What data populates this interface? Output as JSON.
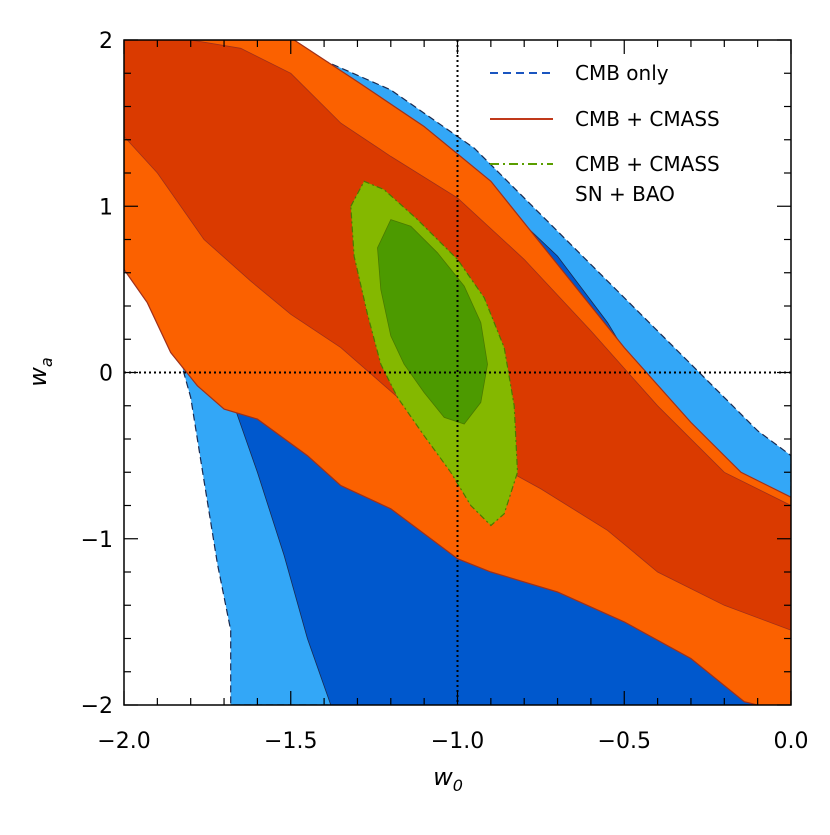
{
  "chart_data": {
    "type": "contour",
    "xlabel": "w",
    "xlabel_subscript": "0",
    "ylabel": "w",
    "ylabel_subscript": "a",
    "xlim": [
      -2.0,
      0.0
    ],
    "ylim": [
      -2.0,
      2.0
    ],
    "x_ticks": [
      -2.0,
      -1.5,
      -1.0,
      -0.5,
      0.0
    ],
    "x_tick_labels": [
      "−2.0",
      "−1.5",
      "−1.0",
      "−0.5",
      "0.0"
    ],
    "y_ticks": [
      -2,
      -1,
      0,
      1,
      2
    ],
    "y_tick_labels": [
      "−2",
      "−1",
      "0",
      "1",
      "2"
    ],
    "reference_lines": {
      "x": -1.0,
      "y": 0.0,
      "style": "dotted"
    },
    "legend_position": "top-right",
    "legend": [
      {
        "label": "CMB only",
        "style": "dashed",
        "color": "#1a55c0"
      },
      {
        "label": "CMB + CMASS",
        "style": "solid",
        "color": "#c0391a"
      },
      {
        "label": "CMB + CMASS",
        "label2": "SN + BAO",
        "style": "dash-dot",
        "color": "#5a9e00"
      }
    ],
    "series": [
      {
        "name": "CMB only",
        "color_outer": "#33a7f7",
        "color_inner": "#0058cd",
        "outer_95": [
          [
            -2.0,
            0.85
          ],
          [
            -1.92,
            0.65
          ],
          [
            -1.86,
            0.28
          ],
          [
            -1.8,
            -0.15
          ],
          [
            -1.76,
            -0.65
          ],
          [
            -1.72,
            -1.15
          ],
          [
            -1.68,
            -1.55
          ],
          [
            -1.68,
            -2.0
          ],
          [
            0.0,
            -2.0
          ],
          [
            0.0,
            -0.5
          ],
          [
            -0.1,
            -0.35
          ],
          [
            -0.25,
            -0.05
          ],
          [
            -0.45,
            0.35
          ],
          [
            -0.7,
            0.85
          ],
          [
            -0.95,
            1.35
          ],
          [
            -1.2,
            1.7
          ],
          [
            -1.45,
            1.92
          ],
          [
            -1.53,
            2.0
          ],
          [
            -2.0,
            2.0
          ]
        ],
        "inner_68": [
          [
            -2.0,
            2.0
          ],
          [
            -1.6,
            2.0
          ],
          [
            -1.5,
            1.88
          ],
          [
            -1.3,
            1.62
          ],
          [
            -1.1,
            1.35
          ],
          [
            -0.9,
            1.08
          ],
          [
            -0.7,
            0.7
          ],
          [
            -0.55,
            0.3
          ],
          [
            -0.4,
            -0.2
          ],
          [
            -0.25,
            -0.65
          ],
          [
            -0.1,
            -0.95
          ],
          [
            0.0,
            -1.2
          ],
          [
            0.0,
            -2.0
          ],
          [
            -1.38,
            -2.0
          ],
          [
            -1.45,
            -1.6
          ],
          [
            -1.52,
            -1.1
          ],
          [
            -1.6,
            -0.6
          ],
          [
            -1.67,
            -0.2
          ],
          [
            -1.76,
            0.18
          ],
          [
            -1.84,
            0.42
          ],
          [
            -1.93,
            0.65
          ],
          [
            -2.0,
            0.8
          ]
        ]
      },
      {
        "name": "CMB + CMASS",
        "color_outer": "#fb6100",
        "color_inner": "#da3a00",
        "outer_95": [
          [
            -2.0,
            2.0
          ],
          [
            -1.49,
            2.0
          ],
          [
            -1.3,
            1.75
          ],
          [
            -1.1,
            1.48
          ],
          [
            -0.9,
            1.15
          ],
          [
            -0.7,
            0.65
          ],
          [
            -0.5,
            0.15
          ],
          [
            -0.3,
            -0.3
          ],
          [
            -0.15,
            -0.6
          ],
          [
            0.0,
            -0.75
          ],
          [
            0.0,
            -2.05
          ],
          [
            -0.14,
            -1.98
          ],
          [
            -0.3,
            -1.72
          ],
          [
            -0.5,
            -1.5
          ],
          [
            -0.7,
            -1.32
          ],
          [
            -0.9,
            -1.2
          ],
          [
            -1.0,
            -1.12
          ],
          [
            -1.2,
            -0.82
          ],
          [
            -1.35,
            -0.68
          ],
          [
            -1.45,
            -0.5
          ],
          [
            -1.6,
            -0.28
          ],
          [
            -1.7,
            -0.22
          ],
          [
            -1.78,
            -0.08
          ],
          [
            -1.86,
            0.12
          ],
          [
            -1.93,
            0.42
          ],
          [
            -2.0,
            0.62
          ]
        ],
        "inner_68": [
          [
            -2.0,
            2.0
          ],
          [
            -1.8,
            2.0
          ],
          [
            -1.65,
            1.95
          ],
          [
            -1.5,
            1.8
          ],
          [
            -1.35,
            1.5
          ],
          [
            -1.2,
            1.3
          ],
          [
            -1.0,
            1.05
          ],
          [
            -0.8,
            0.68
          ],
          [
            -0.6,
            0.25
          ],
          [
            -0.4,
            -0.2
          ],
          [
            -0.2,
            -0.6
          ],
          [
            0.0,
            -0.8
          ],
          [
            0.0,
            -1.55
          ],
          [
            -0.2,
            -1.4
          ],
          [
            -0.4,
            -1.2
          ],
          [
            -0.55,
            -0.95
          ],
          [
            -0.75,
            -0.7
          ],
          [
            -0.95,
            -0.48
          ],
          [
            -1.15,
            -0.2
          ],
          [
            -1.35,
            0.15
          ],
          [
            -1.5,
            0.35
          ],
          [
            -1.62,
            0.55
          ],
          [
            -1.76,
            0.8
          ],
          [
            -1.9,
            1.2
          ],
          [
            -2.0,
            1.42
          ]
        ]
      },
      {
        "name": "CMB + CMASS SN + BAO",
        "color_outer": "#84b800",
        "color_inner": "#4c9a00",
        "outer_95": [
          [
            -1.32,
            1.0
          ],
          [
            -1.28,
            1.15
          ],
          [
            -1.22,
            1.1
          ],
          [
            -1.12,
            0.92
          ],
          [
            -1.0,
            0.68
          ],
          [
            -0.92,
            0.45
          ],
          [
            -0.86,
            0.15
          ],
          [
            -0.83,
            -0.2
          ],
          [
            -0.82,
            -0.6
          ],
          [
            -0.86,
            -0.85
          ],
          [
            -0.9,
            -0.92
          ],
          [
            -0.96,
            -0.8
          ],
          [
            -1.02,
            -0.6
          ],
          [
            -1.1,
            -0.38
          ],
          [
            -1.18,
            -0.15
          ],
          [
            -1.23,
            0.05
          ],
          [
            -1.27,
            0.35
          ],
          [
            -1.31,
            0.7
          ]
        ],
        "inner_68": [
          [
            -1.24,
            0.75
          ],
          [
            -1.2,
            0.92
          ],
          [
            -1.14,
            0.88
          ],
          [
            -1.06,
            0.72
          ],
          [
            -0.98,
            0.52
          ],
          [
            -0.93,
            0.3
          ],
          [
            -0.91,
            0.05
          ],
          [
            -0.93,
            -0.18
          ],
          [
            -0.98,
            -0.31
          ],
          [
            -1.04,
            -0.27
          ],
          [
            -1.1,
            -0.12
          ],
          [
            -1.16,
            0.05
          ],
          [
            -1.2,
            0.22
          ],
          [
            -1.23,
            0.5
          ]
        ]
      }
    ]
  }
}
